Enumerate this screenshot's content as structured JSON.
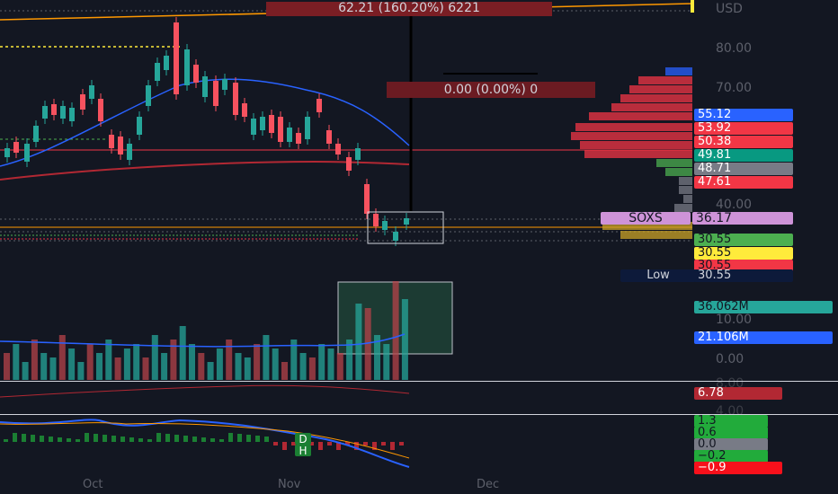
{
  "price_axis": {
    "currency": "USD",
    "ticks": [
      "80.00",
      "70.00",
      "40.00"
    ],
    "volume_ticks": [
      "10.00",
      "0.00"
    ],
    "osc_ticks": [
      "8.00",
      "4.00"
    ]
  },
  "x_axis": {
    "labels": [
      "Oct",
      "Nov",
      "Dec"
    ]
  },
  "measure": {
    "top_label": "62.21 (160.20%) 6221",
    "mid_label": "0.00 (0.00%) 0"
  },
  "price_badges": [
    {
      "text": "55.12",
      "color": "#2962ff"
    },
    {
      "text": "53.92",
      "color": "#f23645"
    },
    {
      "text": "50.38",
      "color": "#f23645"
    },
    {
      "text": "49.81",
      "color": "#089981"
    },
    {
      "text": "48.71",
      "color": "#787b86"
    },
    {
      "text": "47.61",
      "color": "#f23645"
    }
  ],
  "symbol_label": {
    "symbol": "SOXS",
    "price": "36.17",
    "color": "#ce93d8"
  },
  "low_badges": [
    {
      "text": "30.55",
      "color": "#4caf50"
    },
    {
      "text": "30.55",
      "color": "#ffeb3b"
    },
    {
      "text": "30.55",
      "color": "#f23645"
    }
  ],
  "low_label": {
    "name": "Low",
    "value": "30.55"
  },
  "volume_badges": [
    {
      "text": "36.062M",
      "color": "#26a69a"
    },
    {
      "text": "21.106M",
      "color": "#2962ff"
    }
  ],
  "rsi_badge": {
    "text": "6.78",
    "color": "#b22833"
  },
  "osc_badges": [
    {
      "text": "1.3",
      "color": "#22ab3b"
    },
    {
      "text": "0.6",
      "color": "#22ab3b"
    },
    {
      "text": "0.0",
      "color": "#787b86"
    },
    {
      "text": "−0.2",
      "color": "#22ab3b"
    },
    {
      "text": "−0.9",
      "color": "#f7101b"
    }
  ],
  "markers": [
    "D",
    "H"
  ]
}
